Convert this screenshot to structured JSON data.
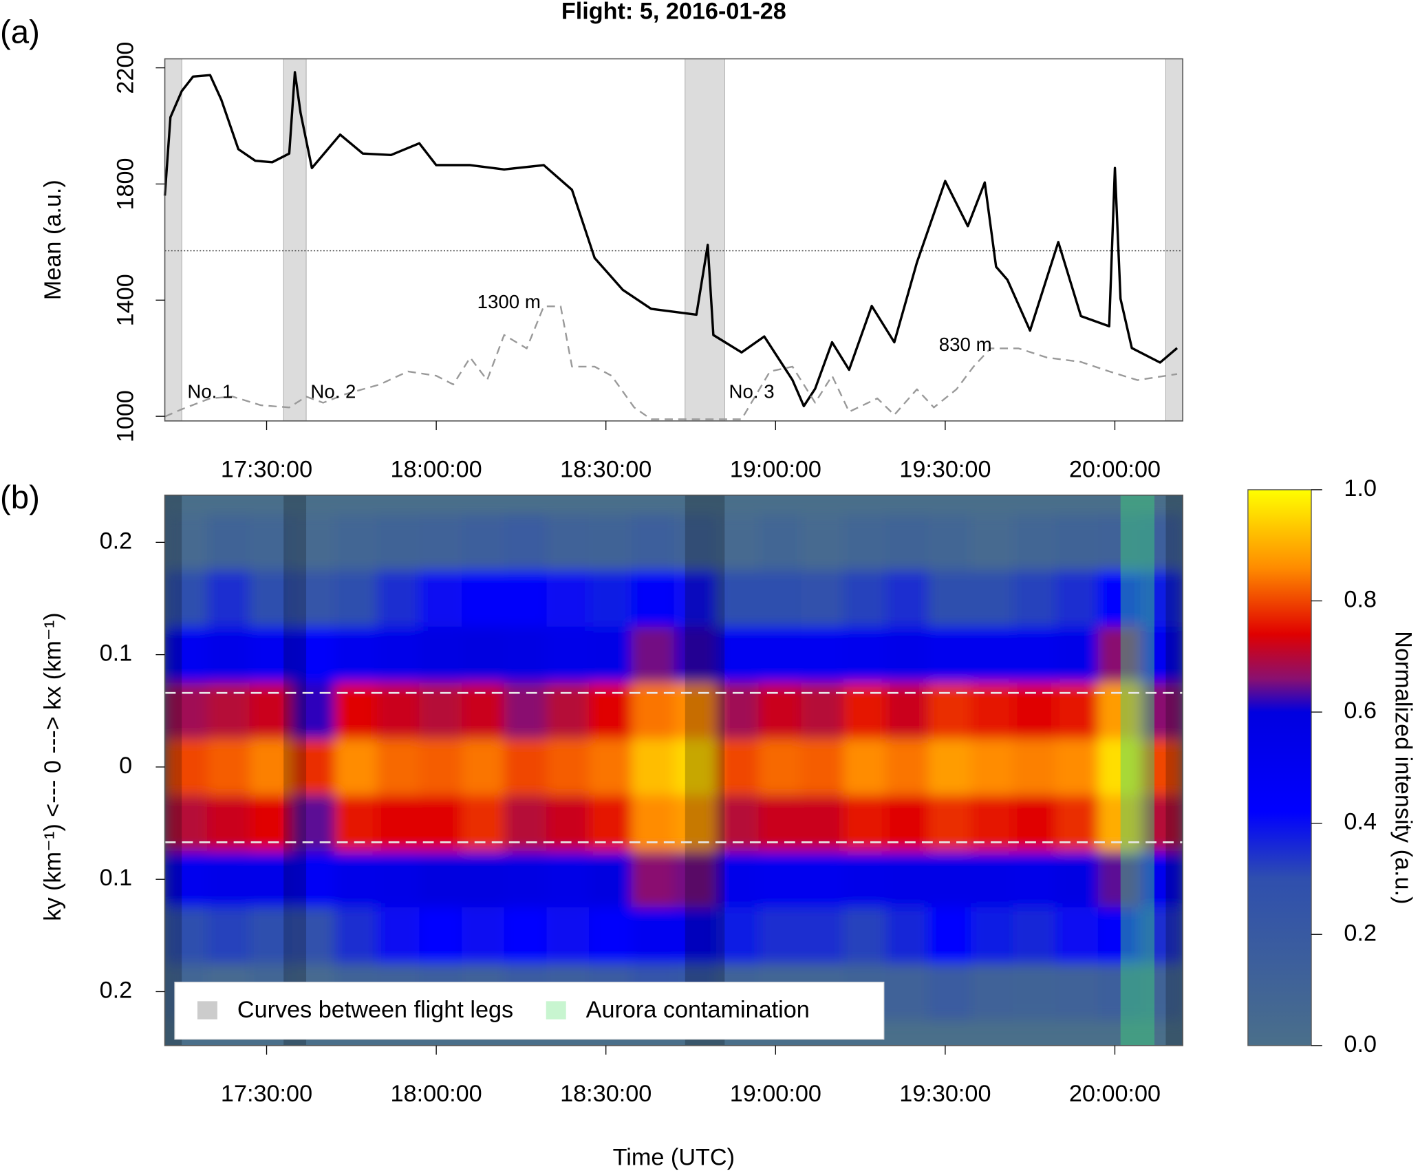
{
  "chart_data": [
    {
      "type": "line",
      "panel_label": "(a)",
      "title": "Flight: 5, 2016-01-28",
      "ylabel": "Mean (a.u.)",
      "xlim": [
        "17:12:00",
        "20:12:00"
      ],
      "xticks": [
        "17:30:00",
        "18:00:00",
        "18:30:00",
        "19:00:00",
        "19:30:00",
        "20:00:00"
      ],
      "ylim": [
        984,
        2231
      ],
      "yticks": [
        1000,
        1400,
        1800,
        2200
      ],
      "y2lim": [
        -20,
        4150
      ],
      "hline": 1570,
      "shaded": [
        [
          "17:12:00",
          "17:15:00"
        ],
        [
          "17:33:00",
          "17:37:00"
        ],
        [
          "18:44:00",
          "18:51:00"
        ],
        [
          "20:09:00",
          "20:12:00"
        ]
      ],
      "shaded_color": "#dcdcdc",
      "annotations": [
        "No. 1",
        "No. 2",
        "No. 3",
        "1300 m",
        "830 m"
      ],
      "series": [
        {
          "color": "#000000",
          "x": [
            "17:12:00",
            "17:13:00",
            "17:15:00",
            "17:17:00",
            "17:20:00",
            "17:22:00",
            "17:25:00",
            "17:28:00",
            "17:31:00",
            "17:34:00",
            "17:35:00",
            "17:36:00",
            "17:38:00",
            "17:43:00",
            "17:47:00",
            "17:52:00",
            "17:57:00",
            "18:00:00",
            "18:06:00",
            "18:12:00",
            "18:19:00",
            "18:24:00",
            "18:28:00",
            "18:33:00",
            "18:38:00",
            "18:46:00",
            "18:48:00",
            "18:49:00",
            "18:54:00",
            "18:58:00",
            "19:03:00",
            "19:05:00",
            "19:07:00",
            "19:10:00",
            "19:13:00",
            "19:17:00",
            "19:21:00",
            "19:25:00",
            "19:30:00",
            "19:34:00",
            "19:37:00",
            "19:39:00",
            "19:41:00",
            "19:45:00",
            "19:50:00",
            "19:54:00",
            "19:59:00",
            "20:00:00",
            "20:01:00",
            "20:03:00",
            "20:08:00",
            "20:11:00"
          ],
          "values": [
            1760,
            2030,
            2120,
            2170,
            2175,
            2090,
            1920,
            1880,
            1875,
            1905,
            2185,
            2045,
            1855,
            1970,
            1905,
            1900,
            1940,
            1865,
            1865,
            1850,
            1865,
            1780,
            1545,
            1435,
            1370,
            1350,
            1590,
            1280,
            1220,
            1275,
            1125,
            1035,
            1095,
            1255,
            1160,
            1380,
            1255,
            1530,
            1810,
            1655,
            1805,
            1515,
            1470,
            1295,
            1600,
            1345,
            1310,
            1855,
            1405,
            1235,
            1185,
            1235
          ]
        },
        {
          "color": "#999999",
          "dashed": true,
          "axis": "y2",
          "x": [
            "17:12:00",
            "17:15:00",
            "17:20:00",
            "17:24:00",
            "17:29:00",
            "17:34:00",
            "17:37:00",
            "17:40:00",
            "17:44:00",
            "17:50:00",
            "17:55:00",
            "18:00:00",
            "18:03:00",
            "18:06:00",
            "18:09:00",
            "18:12:00",
            "18:16:00",
            "18:19:00",
            "18:22:00",
            "18:24:00",
            "18:28:00",
            "18:31:00",
            "18:35:00",
            "18:38:00",
            "18:44:00",
            "18:51:00",
            "18:54:00",
            "18:59:00",
            "19:03:00",
            "19:07:00",
            "19:10:00",
            "19:13:00",
            "19:18:00",
            "19:21:00",
            "19:25:00",
            "19:28:00",
            "19:32:00",
            "19:35:00",
            "19:38:00",
            "19:43:00",
            "19:48:00",
            "19:54:00",
            "19:59:00",
            "20:04:00",
            "20:11:00"
          ],
          "values": [
            30,
            115,
            240,
            260,
            160,
            135,
            260,
            190,
            290,
            400,
            550,
            500,
            400,
            710,
            450,
            970,
            815,
            1300,
            1300,
            605,
            605,
            500,
            135,
            0,
            0,
            0,
            0,
            550,
            605,
            190,
            500,
            85,
            240,
            50,
            345,
            135,
            345,
            605,
            815,
            815,
            710,
            660,
            550,
            450,
            520
          ]
        }
      ]
    },
    {
      "type": "heatmap",
      "panel_label": "(b)",
      "xlabel": "Time (UTC)",
      "ylabel": "ky (km⁻¹)  <--- 0 ---> kx (km⁻¹)",
      "xlim": [
        "17:12:00",
        "20:12:00"
      ],
      "xticks": [
        "17:30:00",
        "18:00:00",
        "18:30:00",
        "19:00:00",
        "19:30:00",
        "20:00:00"
      ],
      "ylim": [
        -0.248,
        0.242
      ],
      "yticks": [
        {
          "value": -0.2,
          "label": "0.2"
        },
        {
          "value": -0.1,
          "label": "0.1"
        },
        0,
        0.1,
        0.2
      ],
      "hlines": [
        0.066,
        -0.067
      ],
      "xbins": [
        "17:12:00",
        "17:19:30",
        "17:27:00",
        "17:34:30",
        "17:42:00",
        "17:49:30",
        "17:57:00",
        "18:04:30",
        "18:12:00",
        "18:19:30",
        "18:27:00",
        "18:34:30",
        "18:42:00",
        "18:49:30",
        "18:57:00",
        "19:04:30",
        "19:12:00",
        "19:19:30",
        "19:27:00",
        "19:34:30",
        "19:42:00",
        "19:49:30",
        "19:57:00",
        "20:04:30",
        "20:12:00"
      ],
      "ybins": [
        0.225,
        0.175,
        0.125,
        0.075,
        0.025,
        -0.025,
        -0.075,
        -0.125,
        -0.175,
        -0.225
      ],
      "z": [
        [
          0.05,
          0.1,
          0.08,
          0.05,
          0.08,
          0.1,
          0.12,
          0.15,
          0.18,
          0.12,
          0.1,
          0.15,
          0.1,
          0.05,
          0.08,
          0.05,
          0.08,
          0.1,
          0.08,
          0.05,
          0.08,
          0.1,
          0.12,
          0.15
        ],
        [
          0.3,
          0.35,
          0.3,
          0.25,
          0.3,
          0.35,
          0.4,
          0.45,
          0.45,
          0.4,
          0.38,
          0.45,
          0.4,
          0.3,
          0.3,
          0.28,
          0.32,
          0.35,
          0.3,
          0.3,
          0.32,
          0.35,
          0.42,
          0.38
        ],
        [
          0.5,
          0.55,
          0.5,
          0.45,
          0.52,
          0.55,
          0.58,
          0.6,
          0.58,
          0.55,
          0.56,
          0.65,
          0.62,
          0.5,
          0.5,
          0.5,
          0.52,
          0.55,
          0.52,
          0.52,
          0.52,
          0.55,
          0.66,
          0.5
        ],
        [
          0.68,
          0.7,
          0.72,
          0.62,
          0.74,
          0.72,
          0.7,
          0.72,
          0.66,
          0.7,
          0.74,
          0.84,
          0.86,
          0.68,
          0.72,
          0.7,
          0.76,
          0.72,
          0.78,
          0.76,
          0.74,
          0.76,
          0.88,
          0.66
        ],
        [
          0.8,
          0.82,
          0.85,
          0.78,
          0.86,
          0.83,
          0.82,
          0.84,
          0.8,
          0.82,
          0.84,
          0.92,
          0.95,
          0.8,
          0.83,
          0.82,
          0.86,
          0.84,
          0.88,
          0.86,
          0.85,
          0.86,
          0.96,
          0.8
        ],
        [
          0.7,
          0.72,
          0.74,
          0.64,
          0.76,
          0.74,
          0.74,
          0.78,
          0.7,
          0.72,
          0.76,
          0.86,
          0.88,
          0.7,
          0.72,
          0.72,
          0.76,
          0.74,
          0.78,
          0.76,
          0.74,
          0.78,
          0.9,
          0.7
        ],
        [
          0.52,
          0.55,
          0.55,
          0.48,
          0.55,
          0.56,
          0.6,
          0.6,
          0.58,
          0.56,
          0.6,
          0.66,
          0.65,
          0.54,
          0.52,
          0.52,
          0.55,
          0.56,
          0.56,
          0.56,
          0.55,
          0.58,
          0.64,
          0.52
        ],
        [
          0.3,
          0.32,
          0.3,
          0.28,
          0.35,
          0.4,
          0.42,
          0.4,
          0.42,
          0.4,
          0.44,
          0.5,
          0.5,
          0.38,
          0.35,
          0.35,
          0.32,
          0.36,
          0.42,
          0.38,
          0.36,
          0.4,
          0.45,
          0.35
        ],
        [
          0.08,
          0.05,
          0.08,
          0.05,
          0.1,
          0.12,
          0.15,
          0.12,
          0.18,
          0.15,
          0.18,
          0.25,
          0.22,
          0.1,
          0.08,
          0.08,
          0.1,
          0.12,
          0.18,
          0.12,
          0.1,
          0.12,
          0.15,
          0.1
        ]
      ],
      "colorscale": [
        [
          0,
          "#4a6f8a"
        ],
        [
          0.3,
          "#2f4fae"
        ],
        [
          0.42,
          "#0000ff"
        ],
        [
          0.6,
          "#0000e0"
        ],
        [
          0.66,
          "#8a1070"
        ],
        [
          0.74,
          "#e00000"
        ],
        [
          0.86,
          "#ff8c00"
        ],
        [
          1,
          "#ffff00"
        ]
      ],
      "colorbar": {
        "label": "Normalized intensity (a.u.)",
        "lim": [
          0,
          1
        ],
        "ticks": [
          {
            "value": 0,
            "label": "0.0"
          },
          0.2,
          0.4,
          0.6,
          0.8,
          {
            "value": 1,
            "label": "1.0"
          }
        ]
      },
      "legend": "bottom left",
      "bands": [
        {
          "name": "Curves between flight legs",
          "color": "#cccccc",
          "intervals": [
            [
              "17:12:00",
              "17:15:00"
            ],
            [
              "17:33:00",
              "17:37:00"
            ],
            [
              "18:44:00",
              "18:51:00"
            ],
            [
              "20:09:00",
              "20:12:00"
            ]
          ]
        },
        {
          "name": "Aurora contamination",
          "color": "#c8f5d0",
          "intervals": [
            [
              "20:01:00",
              "20:07:00"
            ]
          ]
        }
      ]
    }
  ]
}
